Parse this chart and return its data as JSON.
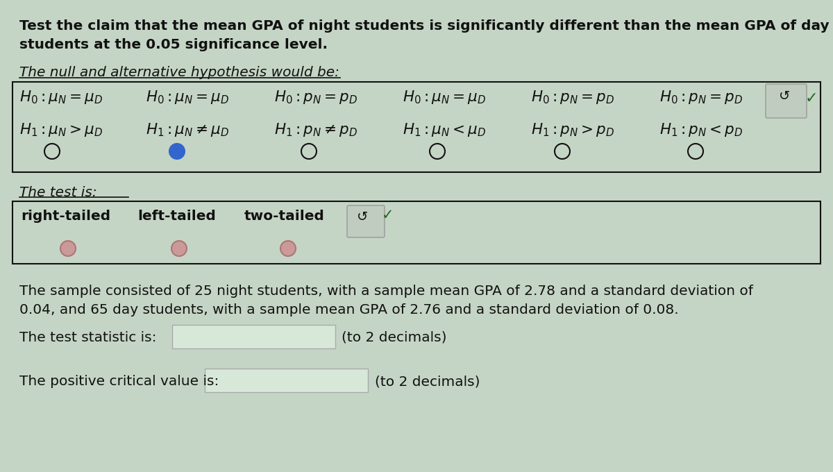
{
  "bg_color": "#c5d5c5",
  "text_color": "#111111",
  "title_line1": "Test the claim that the mean GPA of night students is significantly different than the mean GPA of day",
  "title_line2": "students at the 0.05 significance level.",
  "hyp_label": "The null and alternative hypothesis would be:",
  "test_label": "The test is:",
  "sample_line1": "The sample consisted of 25 night students, with a sample mean GPA of 2.78 and a standard deviation of",
  "sample_line2": "0.04, and 65 day students, with a sample mean GPA of 2.76 and a standard deviation of 0.08.",
  "test_stat_label": "The test statistic is:",
  "critical_label": "The positive critical value is:",
  "to2dec1": "(to 2 decimals)",
  "to2dec2": "(to 2 decimals)",
  "font_size_body": 14.5,
  "font_size_math": 15.5,
  "font_size_small": 13.5,
  "box1_color": "#b8c8b8",
  "box2_color": "#b8c8b8",
  "input_color": "#d8e8d8",
  "selected_radio_color": "#3366cc",
  "radio_open_color": "#888888",
  "checkmark_color": "#226622"
}
